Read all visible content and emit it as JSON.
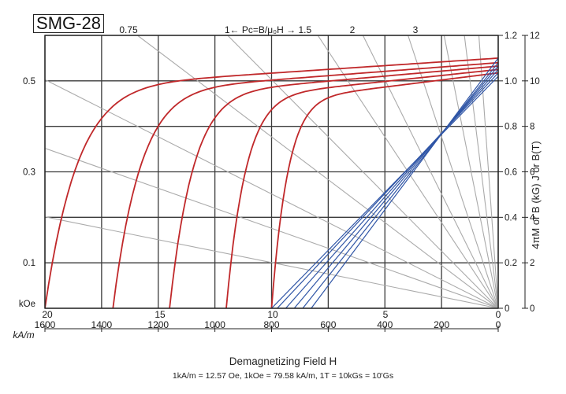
{
  "chart_data": {
    "type": "line",
    "grade": "SMG-28",
    "xlabel": "Demagnetizing Field H",
    "conversion_note": "1kA/m = 12.57 Oe, 1kOe = 79.58 kA/m, 1T = 10kGs = 10'Gs",
    "ylabel_right": "4πM or B (kG)  J or B(T)",
    "x_kAm": {
      "label": "kA/m",
      "ticks": [
        "1600",
        "1400",
        "1200",
        "1000",
        "800",
        "600",
        "400",
        "200",
        "0"
      ],
      "range": [
        1600,
        0
      ]
    },
    "x_kOe": {
      "label": "kOe",
      "ticks": [
        "20",
        "15",
        "10",
        "5",
        "0"
      ],
      "range": [
        20,
        0
      ]
    },
    "y_T": {
      "ticks": [
        "0",
        "0.2",
        "0.4",
        "0.6",
        "0.8",
        "1.0",
        "1.2"
      ],
      "range": [
        0,
        1.2
      ]
    },
    "y_kG": {
      "ticks": [
        "0",
        "2",
        "4",
        "6",
        "8",
        "10",
        "12"
      ],
      "range": [
        0,
        12
      ]
    },
    "y_left_kOe_ticks": [
      "0.1",
      "0.3",
      "0.5"
    ],
    "load_line_labels": [
      "0.75",
      "1← Pc=B/μ₀H → 1.5",
      "2",
      "3"
    ],
    "intrinsic_curves_J": [
      {
        "Hcj_kAm": 1600,
        "Jr_T": 1.1
      },
      {
        "Hcj_kAm": 1360,
        "Jr_T": 1.08
      },
      {
        "Hcj_kAm": 1160,
        "Jr_T": 1.065
      },
      {
        "Hcj_kAm": 960,
        "Jr_T": 1.05
      },
      {
        "Hcj_kAm": 800,
        "Jr_T": 1.035
      }
    ],
    "normal_curves_B": [
      {
        "Br_T": 1.1,
        "Hcb_kAm": 660
      },
      {
        "Br_T": 1.08,
        "Hcb_kAm": 690
      },
      {
        "Br_T": 1.065,
        "Hcb_kAm": 720
      },
      {
        "Br_T": 1.05,
        "Hcb_kAm": 750
      },
      {
        "Br_T": 1.035,
        "Hcb_kAm": 780
      },
      {
        "Br_T": 1.02,
        "Hcb_kAm": 800
      }
    ],
    "colors": {
      "intrinsic": "#c0282a",
      "normal": "#2f55a6",
      "load_lines": "#aaaaaa",
      "grid": "#3a3a3a"
    }
  }
}
